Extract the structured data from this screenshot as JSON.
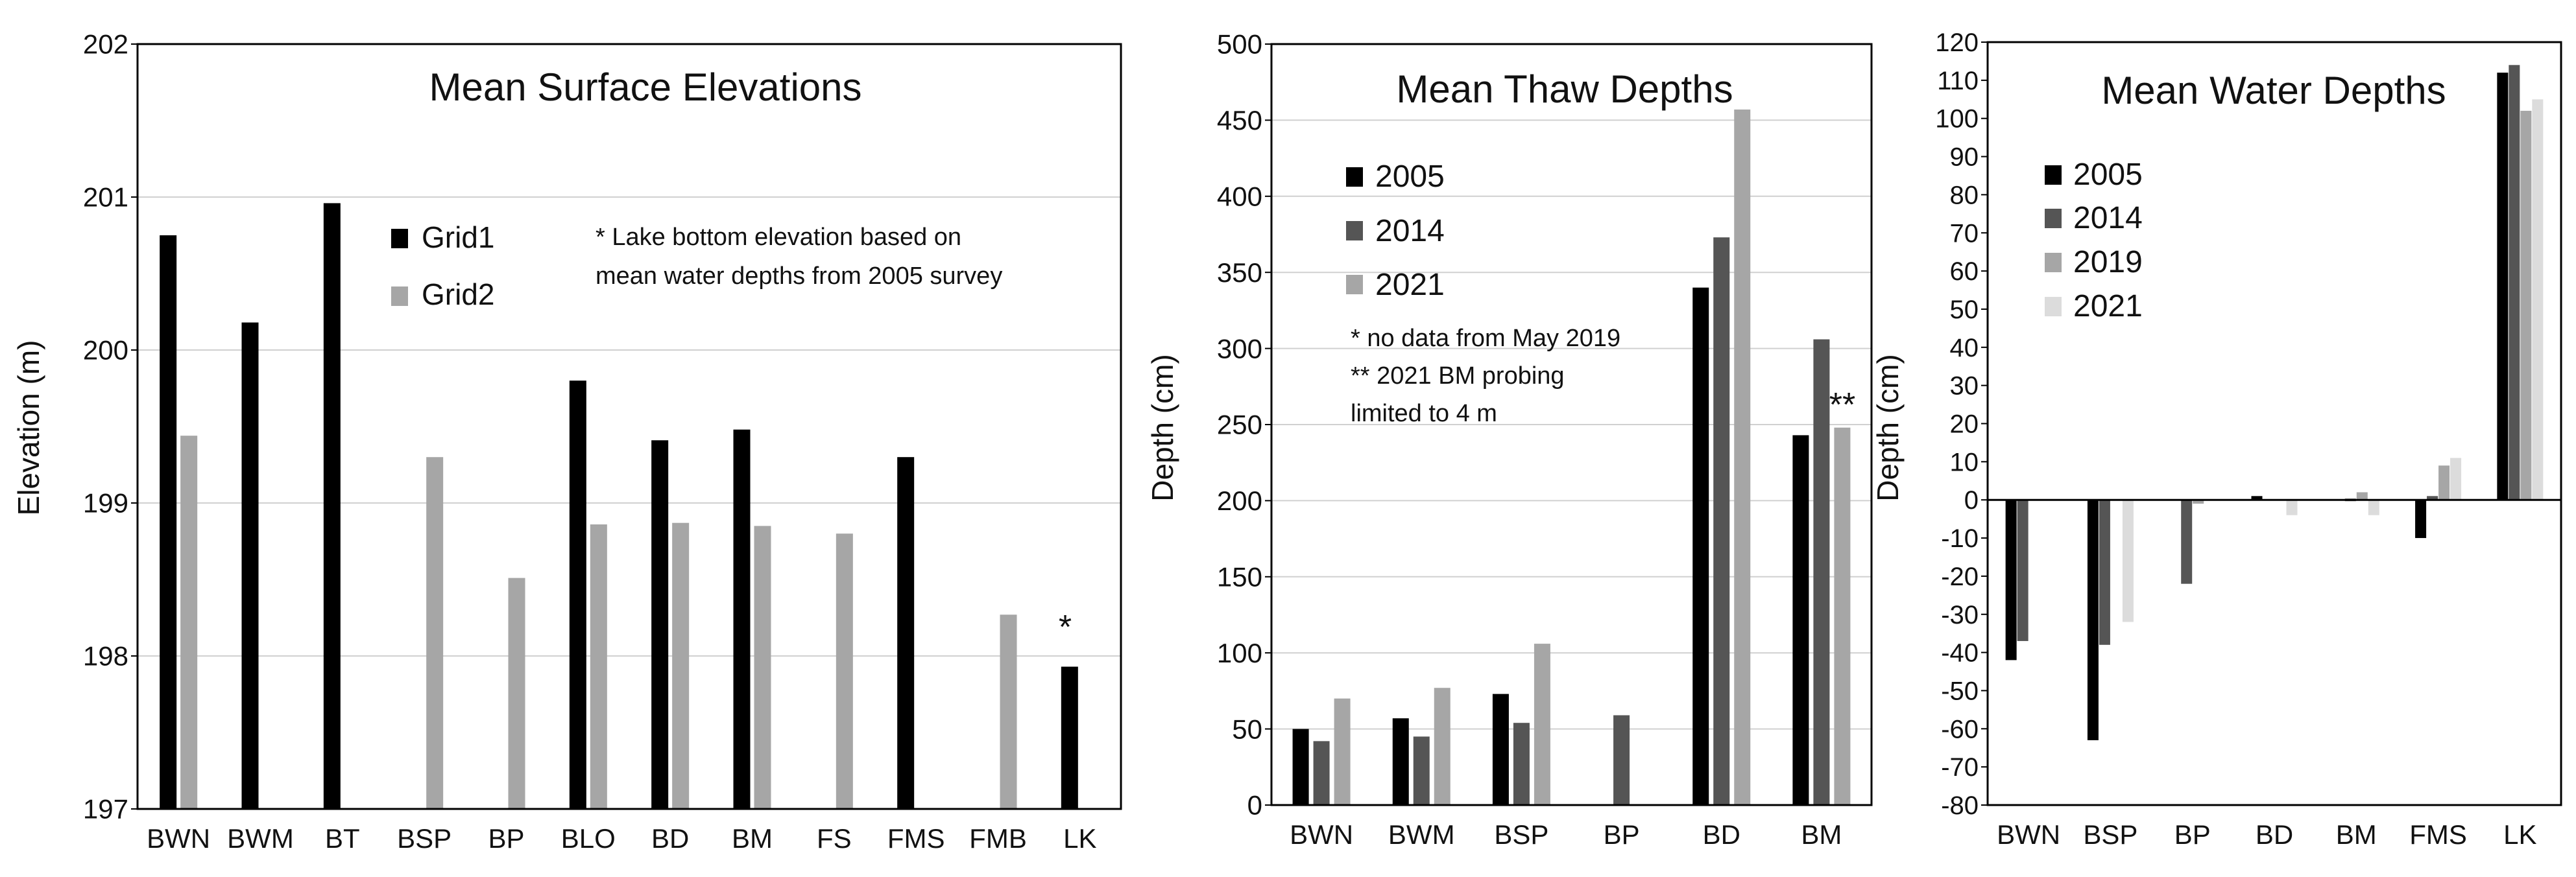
{
  "colors": {
    "black": "#000000",
    "dark_gray": "#555555",
    "mid_gray": "#a6a6a6",
    "light_gray": "#dcdcdc",
    "grid": "#d0d0d0",
    "axis": "#000000"
  },
  "chart_data": [
    {
      "type": "bar",
      "title": "Mean Surface Elevations",
      "xlabel": "",
      "ylabel": "Elevation (m)",
      "ylim": [
        197,
        202
      ],
      "yticks": [
        197,
        198,
        199,
        200,
        201,
        202
      ],
      "grid": true,
      "legend_position": "upper-middle",
      "categories": [
        "BWN",
        "BWM",
        "BT",
        "BSP",
        "BP",
        "BLO",
        "BD",
        "BM",
        "FS",
        "FMS",
        "FMB",
        "LK"
      ],
      "series": [
        {
          "name": "Grid1",
          "color": "#000000",
          "values": [
            200.75,
            200.18,
            200.96,
            null,
            null,
            199.8,
            199.41,
            199.48,
            null,
            199.3,
            null,
            197.93
          ]
        },
        {
          "name": "Grid2",
          "color": "#a6a6a6",
          "values": [
            199.44,
            null,
            null,
            199.3,
            198.51,
            198.86,
            198.87,
            198.85,
            198.8,
            null,
            198.27,
            null
          ]
        }
      ],
      "annotations": [
        {
          "text": "* Lake bottom elevation based on"
        },
        {
          "text": "mean water depths from 2005 survey"
        },
        {
          "text": "*",
          "category": "LK",
          "series": "Grid1"
        }
      ]
    },
    {
      "type": "bar",
      "title": "Mean Thaw Depths",
      "xlabel": "",
      "ylabel": "Depth (cm)",
      "ylim": [
        0,
        500
      ],
      "yticks": [
        0,
        50,
        100,
        150,
        200,
        250,
        300,
        350,
        400,
        450,
        500
      ],
      "grid": true,
      "legend_position": "upper-left",
      "categories": [
        "BWN",
        "BWM",
        "BSP",
        "BP",
        "BD",
        "BM"
      ],
      "series": [
        {
          "name": "2005",
          "color": "#000000",
          "values": [
            50,
            57,
            73,
            null,
            340,
            243
          ]
        },
        {
          "name": "2014",
          "color": "#555555",
          "values": [
            42,
            45,
            54,
            59,
            373,
            306
          ]
        },
        {
          "name": "2021",
          "color": "#a6a6a6",
          "values": [
            70,
            77,
            106,
            null,
            457,
            248
          ]
        }
      ],
      "annotations": [
        {
          "text": "* no data from May 2019"
        },
        {
          "text": "** 2021 BM probing"
        },
        {
          "text": "limited to 4 m"
        },
        {
          "text": "**",
          "category": "BM",
          "series": "2021"
        }
      ]
    },
    {
      "type": "bar",
      "title": "Mean Water Depths",
      "xlabel": "",
      "ylabel": "Depth (cm)",
      "ylim": [
        -80,
        120
      ],
      "yticks": [
        -80,
        -70,
        -60,
        -50,
        -40,
        -30,
        -20,
        -10,
        0,
        10,
        20,
        30,
        40,
        50,
        60,
        70,
        80,
        90,
        100,
        110,
        120
      ],
      "grid": false,
      "legend_position": "upper-left",
      "categories": [
        "BWN",
        "BSP",
        "BP",
        "BD",
        "BM",
        "FMS",
        "LK"
      ],
      "series": [
        {
          "name": "2005",
          "color": "#000000",
          "values": [
            -42,
            -63,
            null,
            1,
            null,
            -10,
            112
          ]
        },
        {
          "name": "2014",
          "color": "#555555",
          "values": [
            -37,
            -38,
            -22,
            null,
            -0.5,
            1,
            114
          ]
        },
        {
          "name": "2019",
          "color": "#a6a6a6",
          "values": [
            null,
            null,
            -1,
            null,
            2,
            9,
            102
          ]
        },
        {
          "name": "2021",
          "color": "#dcdcdc",
          "values": [
            null,
            -32,
            null,
            -4,
            -4,
            11,
            105
          ]
        }
      ]
    }
  ]
}
